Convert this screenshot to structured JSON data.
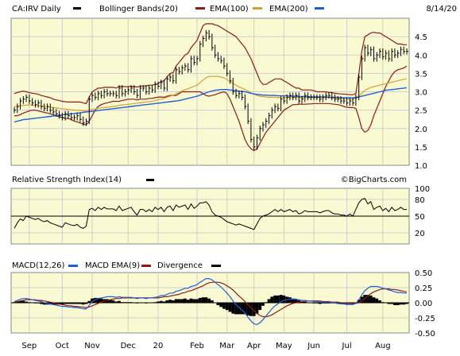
{
  "chart_data": [
    {
      "type": "candlestick",
      "panel": "price",
      "symbol_label": "CA:IRV Daily",
      "date_label": "8/14/20",
      "legend": [
        {
          "name": "CA:IRV Daily",
          "color": "#000000"
        },
        {
          "name": "Bollinger Bands(20)",
          "color": "#8b1a1a"
        },
        {
          "name": "EMA(100)",
          "color": "#d4a035"
        },
        {
          "name": "EMA(200)",
          "color": "#1f5fd6"
        }
      ],
      "watermark": "©BigCharts.com",
      "ylim": [
        1.0,
        5.0
      ],
      "yticks": [
        "1.0",
        "1.5",
        "2.0",
        "2.5",
        "3.0",
        "3.5",
        "4.0",
        "4.5"
      ],
      "ytick_values": [
        1.0,
        1.5,
        2.0,
        2.5,
        3.0,
        3.5,
        4.0,
        4.5
      ],
      "price_close": [
        2.5,
        2.6,
        2.75,
        2.8,
        2.85,
        2.75,
        2.7,
        2.65,
        2.7,
        2.6,
        2.55,
        2.6,
        2.5,
        2.45,
        2.4,
        2.35,
        2.3,
        2.4,
        2.35,
        2.3,
        2.3,
        2.35,
        2.25,
        2.15,
        2.2,
        2.8,
        2.9,
        2.85,
        2.95,
        2.9,
        3.0,
        2.95,
        2.95,
        2.95,
        2.9,
        3.1,
        2.95,
        3.0,
        3.05,
        3.1,
        3.0,
        2.9,
        3.1,
        3.1,
        3.0,
        3.1,
        3.05,
        3.2,
        3.15,
        3.25,
        3.1,
        3.35,
        3.4,
        3.3,
        3.6,
        3.55,
        3.65,
        3.7,
        3.6,
        3.9,
        3.8,
        3.9,
        4.3,
        4.45,
        4.6,
        4.5,
        4.2,
        4.0,
        3.9,
        3.85,
        3.7,
        3.5,
        3.3,
        3.0,
        2.9,
        2.95,
        2.85,
        2.6,
        2.2,
        1.7,
        1.5,
        1.75,
        2.0,
        2.1,
        2.2,
        2.35,
        2.5,
        2.6,
        2.55,
        2.8,
        2.75,
        2.85,
        2.9,
        2.85,
        2.9,
        2.75,
        2.8,
        2.9,
        2.85,
        2.85,
        2.85,
        2.85,
        2.8,
        2.85,
        2.9,
        2.9,
        2.85,
        2.8,
        2.8,
        2.75,
        2.75,
        2.7,
        2.75,
        2.7,
        2.85,
        3.4,
        3.9,
        4.2,
        4.05,
        4.15,
        3.9,
        4.0,
        4.1,
        3.95,
        4.05,
        3.9,
        4.1,
        4.0,
        4.05,
        4.15,
        4.1,
        4.1
      ],
      "ema100": [
        2.6,
        2.6,
        2.62,
        2.63,
        2.64,
        2.64,
        2.64,
        2.63,
        2.62,
        2.61,
        2.6,
        2.59,
        2.58,
        2.57,
        2.56,
        2.55,
        2.54,
        2.53,
        2.52,
        2.51,
        2.5,
        2.5,
        2.49,
        2.48,
        2.48,
        2.5,
        2.52,
        2.53,
        2.55,
        2.56,
        2.57,
        2.58,
        2.59,
        2.6,
        2.61,
        2.63,
        2.64,
        2.65,
        2.66,
        2.67,
        2.68,
        2.69,
        2.7,
        2.71,
        2.72,
        2.73,
        2.74,
        2.76,
        2.78,
        2.8,
        2.82,
        2.85,
        2.88,
        2.9,
        2.95,
        2.98,
        3.02,
        3.06,
        3.08,
        3.12,
        3.15,
        3.18,
        3.25,
        3.32,
        3.38,
        3.42,
        3.42,
        3.42,
        3.42,
        3.4,
        3.38,
        3.33,
        3.28,
        3.23,
        3.18,
        3.13,
        3.1,
        3.06,
        3.02,
        2.97,
        2.93,
        2.9,
        2.88,
        2.87,
        2.86,
        2.85,
        2.85,
        2.85,
        2.84,
        2.84,
        2.84,
        2.84,
        2.84,
        2.84,
        2.84,
        2.84,
        2.84,
        2.84,
        2.84,
        2.84,
        2.84,
        2.84,
        2.84,
        2.84,
        2.84,
        2.84,
        2.83,
        2.83,
        2.82,
        2.82,
        2.81,
        2.81,
        2.8,
        2.8,
        2.82,
        2.88,
        2.96,
        3.04,
        3.08,
        3.12,
        3.14,
        3.16,
        3.18,
        3.2,
        3.22,
        3.24,
        3.26,
        3.28,
        3.3,
        3.32,
        3.34,
        3.36
      ],
      "ema200": [
        2.18,
        2.2,
        2.22,
        2.24,
        2.25,
        2.26,
        2.27,
        2.28,
        2.29,
        2.3,
        2.31,
        2.32,
        2.33,
        2.34,
        2.35,
        2.36,
        2.37,
        2.38,
        2.39,
        2.4,
        2.41,
        2.42,
        2.43,
        2.44,
        2.45,
        2.46,
        2.47,
        2.48,
        2.49,
        2.5,
        2.51,
        2.52,
        2.53,
        2.54,
        2.55,
        2.56,
        2.57,
        2.58,
        2.59,
        2.6,
        2.61,
        2.62,
        2.63,
        2.64,
        2.65,
        2.66,
        2.67,
        2.68,
        2.69,
        2.7,
        2.71,
        2.72,
        2.73,
        2.74,
        2.75,
        2.76,
        2.78,
        2.8,
        2.82,
        2.84,
        2.86,
        2.88,
        2.91,
        2.94,
        2.97,
        3.0,
        3.02,
        3.04,
        3.05,
        3.06,
        3.06,
        3.06,
        3.05,
        3.04,
        3.03,
        3.02,
        3.01,
        3.0,
        2.98,
        2.96,
        2.94,
        2.93,
        2.92,
        2.91,
        2.91,
        2.9,
        2.9,
        2.9,
        2.89,
        2.89,
        2.89,
        2.89,
        2.88,
        2.88,
        2.88,
        2.87,
        2.87,
        2.87,
        2.87,
        2.86,
        2.86,
        2.86,
        2.86,
        2.86,
        2.86,
        2.85,
        2.85,
        2.85,
        2.85,
        2.84,
        2.84,
        2.84,
        2.84,
        2.84,
        2.84,
        2.86,
        2.88,
        2.9,
        2.92,
        2.94,
        2.96,
        2.98,
        3.0,
        3.02,
        3.04,
        3.05,
        3.06,
        3.07,
        3.08,
        3.09,
        3.1,
        3.11
      ],
      "bb_upper": [
        2.95,
        2.98,
        3.0,
        3.02,
        3.0,
        2.98,
        2.96,
        2.95,
        2.93,
        2.9,
        2.88,
        2.86,
        2.84,
        2.8,
        2.78,
        2.76,
        2.74,
        2.73,
        2.72,
        2.72,
        2.72,
        2.72,
        2.72,
        2.7,
        2.68,
        2.85,
        3.0,
        3.05,
        3.1,
        3.1,
        3.12,
        3.12,
        3.12,
        3.12,
        3.1,
        3.15,
        3.14,
        3.14,
        3.14,
        3.15,
        3.14,
        3.13,
        3.15,
        3.16,
        3.16,
        3.18,
        3.18,
        3.2,
        3.22,
        3.28,
        3.3,
        3.4,
        3.5,
        3.52,
        3.7,
        3.8,
        3.9,
        4.0,
        4.05,
        4.2,
        4.3,
        4.4,
        4.6,
        4.8,
        4.85,
        4.85,
        4.85,
        4.82,
        4.8,
        4.75,
        4.7,
        4.65,
        4.6,
        4.55,
        4.5,
        4.4,
        4.3,
        4.2,
        4.05,
        3.9,
        3.7,
        3.5,
        3.3,
        3.2,
        3.2,
        3.25,
        3.3,
        3.35,
        3.35,
        3.35,
        3.3,
        3.25,
        3.2,
        3.15,
        3.1,
        3.1,
        3.05,
        3.05,
        3.05,
        3.05,
        3.03,
        3.0,
        3.0,
        3.0,
        3.0,
        2.98,
        2.98,
        2.96,
        2.95,
        2.94,
        2.94,
        2.93,
        2.92,
        2.92,
        2.95,
        3.5,
        4.1,
        4.5,
        4.55,
        4.6,
        4.62,
        4.6,
        4.6,
        4.55,
        4.5,
        4.45,
        4.4,
        4.35,
        4.3,
        4.3,
        4.28,
        4.28
      ],
      "bb_lower": [
        2.35,
        2.35,
        2.38,
        2.42,
        2.45,
        2.48,
        2.5,
        2.5,
        2.48,
        2.46,
        2.44,
        2.42,
        2.4,
        2.38,
        2.35,
        2.32,
        2.3,
        2.28,
        2.27,
        2.25,
        2.2,
        2.18,
        2.15,
        2.12,
        2.1,
        2.2,
        2.35,
        2.5,
        2.6,
        2.65,
        2.68,
        2.7,
        2.72,
        2.74,
        2.74,
        2.74,
        2.76,
        2.78,
        2.8,
        2.8,
        2.8,
        2.78,
        2.8,
        2.8,
        2.8,
        2.82,
        2.82,
        2.84,
        2.85,
        2.86,
        2.85,
        2.88,
        2.9,
        2.9,
        2.9,
        2.95,
        3.0,
        3.0,
        3.0,
        3.0,
        3.0,
        3.0,
        3.0,
        2.95,
        2.9,
        2.88,
        2.9,
        2.92,
        2.95,
        2.98,
        3.0,
        2.95,
        2.8,
        2.6,
        2.4,
        2.2,
        1.95,
        1.7,
        1.55,
        1.45,
        1.4,
        1.45,
        1.6,
        1.75,
        1.9,
        2.0,
        2.1,
        2.2,
        2.3,
        2.4,
        2.5,
        2.55,
        2.6,
        2.65,
        2.65,
        2.66,
        2.66,
        2.66,
        2.67,
        2.67,
        2.68,
        2.68,
        2.68,
        2.68,
        2.68,
        2.68,
        2.67,
        2.66,
        2.65,
        2.63,
        2.6,
        2.58,
        2.57,
        2.57,
        2.55,
        2.3,
        2.0,
        1.9,
        1.95,
        2.1,
        2.35,
        2.55,
        2.75,
        2.95,
        3.15,
        3.3,
        3.45,
        3.55,
        3.6,
        3.62,
        3.65,
        3.7
      ]
    },
    {
      "type": "line",
      "panel": "rsi",
      "title": "Relative Strength Index(14)",
      "legend": [
        {
          "name": "Relative Strength Index(14)",
          "color": "#000000"
        }
      ],
      "ylim": [
        0,
        100
      ],
      "yticks": [
        "100",
        "80",
        "50",
        "20"
      ],
      "ytick_values": [
        100,
        80,
        50,
        20
      ],
      "reference_line": 50,
      "values": [
        28,
        38,
        45,
        42,
        50,
        48,
        46,
        44,
        46,
        42,
        40,
        42,
        38,
        36,
        34,
        32,
        30,
        38,
        36,
        34,
        33,
        35,
        30,
        28,
        32,
        62,
        64,
        60,
        66,
        62,
        66,
        63,
        63,
        63,
        60,
        68,
        60,
        62,
        64,
        66,
        58,
        52,
        62,
        62,
        58,
        62,
        58,
        66,
        62,
        66,
        58,
        66,
        68,
        60,
        70,
        66,
        68,
        70,
        62,
        72,
        64,
        68,
        74,
        74,
        76,
        70,
        58,
        52,
        50,
        48,
        44,
        40,
        38,
        36,
        34,
        36,
        34,
        32,
        30,
        28,
        26,
        36,
        46,
        50,
        52,
        54,
        58,
        62,
        58,
        62,
        58,
        60,
        62,
        58,
        60,
        54,
        56,
        60,
        58,
        58,
        58,
        58,
        56,
        58,
        60,
        60,
        56,
        54,
        54,
        52,
        52,
        50,
        54,
        50,
        62,
        74,
        80,
        82,
        72,
        76,
        62,
        66,
        68,
        60,
        64,
        58,
        66,
        60,
        62,
        66,
        62,
        62
      ]
    },
    {
      "type": "line",
      "panel": "macd",
      "legend": [
        {
          "name": "MACD(12,26)",
          "color": "#1f5fd6"
        },
        {
          "name": "MACD EMA(9)",
          "color": "#8b1a1a"
        },
        {
          "name": "Divergence",
          "color": "#000000"
        }
      ],
      "ylim": [
        -0.5,
        0.5
      ],
      "yticks": [
        "0.50",
        "0.25",
        "0.00",
        "-0.25",
        "-0.50"
      ],
      "ytick_values": [
        0.5,
        0.25,
        0.0,
        -0.25,
        -0.5
      ],
      "macd": [
        0.02,
        0.04,
        0.06,
        0.07,
        0.07,
        0.06,
        0.05,
        0.04,
        0.03,
        0.02,
        0.0,
        -0.01,
        -0.02,
        -0.03,
        -0.04,
        -0.05,
        -0.06,
        -0.06,
        -0.07,
        -0.07,
        -0.08,
        -0.08,
        -0.09,
        -0.1,
        -0.1,
        -0.04,
        0.02,
        0.05,
        0.07,
        0.08,
        0.09,
        0.1,
        0.1,
        0.1,
        0.09,
        0.1,
        0.09,
        0.09,
        0.09,
        0.09,
        0.08,
        0.07,
        0.08,
        0.08,
        0.07,
        0.08,
        0.08,
        0.09,
        0.1,
        0.12,
        0.12,
        0.14,
        0.16,
        0.16,
        0.19,
        0.2,
        0.22,
        0.24,
        0.24,
        0.27,
        0.28,
        0.3,
        0.34,
        0.37,
        0.4,
        0.4,
        0.38,
        0.34,
        0.3,
        0.26,
        0.21,
        0.16,
        0.1,
        0.03,
        -0.03,
        -0.08,
        -0.12,
        -0.17,
        -0.24,
        -0.3,
        -0.35,
        -0.36,
        -0.33,
        -0.28,
        -0.22,
        -0.16,
        -0.1,
        -0.05,
        -0.02,
        0.02,
        0.04,
        0.05,
        0.06,
        0.06,
        0.06,
        0.05,
        0.04,
        0.04,
        0.03,
        0.03,
        0.02,
        0.02,
        0.01,
        0.01,
        0.01,
        0.01,
        0.0,
        0.0,
        -0.01,
        -0.02,
        -0.02,
        -0.03,
        -0.03,
        -0.03,
        -0.01,
        0.05,
        0.13,
        0.2,
        0.24,
        0.27,
        0.27,
        0.27,
        0.26,
        0.24,
        0.23,
        0.21,
        0.2,
        0.18,
        0.17,
        0.17,
        0.16,
        0.16
      ],
      "signal": [
        0.01,
        0.02,
        0.03,
        0.04,
        0.05,
        0.05,
        0.05,
        0.05,
        0.04,
        0.04,
        0.03,
        0.02,
        0.01,
        0.0,
        -0.01,
        -0.02,
        -0.03,
        -0.04,
        -0.05,
        -0.05,
        -0.06,
        -0.06,
        -0.07,
        -0.07,
        -0.08,
        -0.07,
        -0.05,
        -0.03,
        -0.01,
        0.01,
        0.03,
        0.04,
        0.05,
        0.06,
        0.07,
        0.07,
        0.08,
        0.08,
        0.08,
        0.08,
        0.08,
        0.08,
        0.08,
        0.08,
        0.08,
        0.08,
        0.08,
        0.08,
        0.08,
        0.09,
        0.1,
        0.1,
        0.11,
        0.12,
        0.13,
        0.14,
        0.16,
        0.17,
        0.19,
        0.2,
        0.22,
        0.24,
        0.26,
        0.28,
        0.31,
        0.33,
        0.34,
        0.34,
        0.34,
        0.33,
        0.31,
        0.28,
        0.25,
        0.21,
        0.16,
        0.11,
        0.07,
        0.02,
        -0.03,
        -0.08,
        -0.13,
        -0.18,
        -0.21,
        -0.23,
        -0.23,
        -0.22,
        -0.2,
        -0.17,
        -0.14,
        -0.11,
        -0.08,
        -0.05,
        -0.03,
        -0.01,
        0.0,
        0.01,
        0.02,
        0.02,
        0.03,
        0.03,
        0.03,
        0.03,
        0.03,
        0.02,
        0.02,
        0.02,
        0.01,
        0.01,
        0.01,
        0.0,
        0.0,
        -0.01,
        -0.01,
        -0.02,
        -0.01,
        0.0,
        0.03,
        0.07,
        0.11,
        0.15,
        0.18,
        0.2,
        0.22,
        0.23,
        0.23,
        0.23,
        0.22,
        0.22,
        0.21,
        0.2,
        0.19,
        0.18
      ]
    }
  ],
  "x_axis": {
    "labels": [
      "Sep",
      "Oct",
      "Nov",
      "Dec",
      "20",
      "Feb",
      "Mar",
      "Apr",
      "May",
      "Jun",
      "Jul",
      "Aug"
    ],
    "label_index": [
      5,
      16,
      26,
      38,
      48,
      61,
      71,
      80,
      90,
      100,
      111,
      123
    ]
  }
}
